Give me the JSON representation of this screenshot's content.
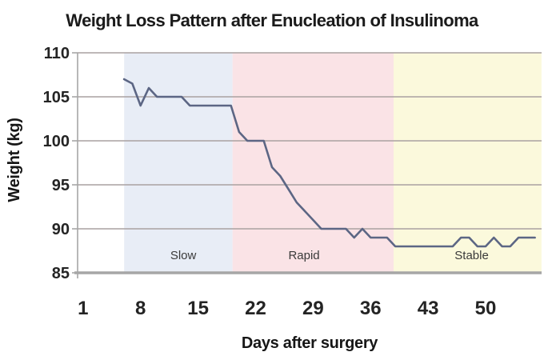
{
  "chart_data": {
    "type": "line",
    "title": "Weight Loss Pattern after Enucleation of Insulinoma",
    "xlabel": "Days after surgery",
    "ylabel": "Weight (kg)",
    "ylim": [
      85,
      110
    ],
    "yticks": [
      85,
      90,
      95,
      100,
      105,
      110
    ],
    "xticks": [
      1,
      8,
      15,
      22,
      29,
      36,
      43,
      50
    ],
    "x_range_days": [
      6,
      56
    ],
    "grid": "horizontal",
    "legend": "none",
    "line_color": "#5c6684",
    "grid_color": "#a9a1a1",
    "axis_color": "#a6a6a6",
    "series": [
      {
        "name": "Weight",
        "x": [
          6,
          7,
          8,
          9,
          10,
          11,
          12,
          13,
          14,
          15,
          16,
          17,
          18,
          19,
          20,
          21,
          22,
          23,
          24,
          25,
          26,
          27,
          28,
          29,
          30,
          31,
          32,
          33,
          34,
          35,
          36,
          37,
          38,
          39,
          40,
          41,
          42,
          43,
          44,
          45,
          46,
          47,
          48,
          49,
          50,
          51,
          52,
          53,
          54,
          55,
          56
        ],
        "y": [
          107,
          106.5,
          104,
          106,
          105,
          105,
          105,
          105,
          104,
          104,
          104,
          104,
          104,
          104,
          101,
          100,
          100,
          100,
          97,
          96,
          94.5,
          93,
          92,
          91,
          90,
          90,
          90,
          90,
          89,
          90,
          89,
          89,
          89,
          88,
          88,
          88,
          88,
          88,
          88,
          88,
          88,
          89,
          89,
          88,
          88,
          89,
          88,
          88,
          89,
          89,
          89
        ]
      }
    ],
    "regions": [
      {
        "label": "Slow",
        "from_day": 6,
        "to_day": 19.2,
        "color": "#e8edf6",
        "label_day": 13.2
      },
      {
        "label": "Rapid",
        "from_day": 19.2,
        "to_day": 38.8,
        "color": "#fae3e6",
        "label_day": 27.9
      },
      {
        "label": "Stable",
        "from_day": 38.8,
        "to_day": 56.8,
        "color": "#fbf9dc",
        "label_day": 48.3
      }
    ],
    "region_label_weight": 87
  }
}
